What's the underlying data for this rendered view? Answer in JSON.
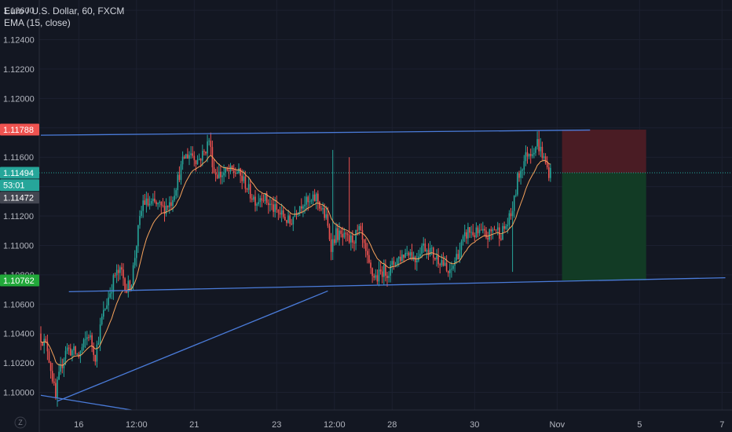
{
  "legend": {
    "symbol": "Euro / U.S. Dollar, 60, FXCM",
    "indicator": "EMA (15, close)"
  },
  "colors": {
    "background": "#131722",
    "up": "#26a69a",
    "down": "#ef5350",
    "ema": "#f7a35c",
    "trendline": "#4a7bd9",
    "stop_zone": "#4a1c24",
    "target_zone": "#123b25"
  },
  "chart_data": {
    "type": "candlestick",
    "title": "Euro / U.S. Dollar, 60, FXCM",
    "indicator": "EMA (15, close)",
    "ylim": [
      1.0988,
      1.1267
    ],
    "y_ticks": [
      "1.12600",
      "1.12400",
      "1.12200",
      "1.12000",
      "1.11800",
      "1.11600",
      "1.11400",
      "1.11200",
      "1.11000",
      "1.10800",
      "1.10600",
      "1.10400",
      "1.10200",
      "1.10000"
    ],
    "x_ticks": [
      {
        "label": "16",
        "bar": 23
      },
      {
        "label": "12:00",
        "bar": 58
      },
      {
        "label": "21",
        "bar": 93
      },
      {
        "label": "23",
        "bar": 143
      },
      {
        "label": "12:00",
        "bar": 178
      },
      {
        "label": "28",
        "bar": 213
      },
      {
        "label": "30",
        "bar": 263
      },
      {
        "label": "Nov",
        "bar": 313
      },
      {
        "label": "5",
        "bar": 363
      },
      {
        "label": "7",
        "bar": 413
      }
    ],
    "ohlc_path": [
      [
        0,
        1.104
      ],
      [
        5,
        1.103
      ],
      [
        8,
        1.101
      ],
      [
        10,
        1.0995
      ],
      [
        11,
        1.1005
      ],
      [
        16,
        1.103
      ],
      [
        20,
        1.1028
      ],
      [
        24,
        1.1025
      ],
      [
        30,
        1.104
      ],
      [
        34,
        1.1025
      ],
      [
        38,
        1.105
      ],
      [
        42,
        1.1065
      ],
      [
        46,
        1.108
      ],
      [
        50,
        1.1082
      ],
      [
        53,
        1.107
      ],
      [
        56,
        1.1076
      ],
      [
        60,
        1.111
      ],
      [
        63,
        1.113
      ],
      [
        66,
        1.1128
      ],
      [
        70,
        1.1128
      ],
      [
        75,
        1.1125
      ],
      [
        80,
        1.113
      ],
      [
        84,
        1.1145
      ],
      [
        88,
        1.116
      ],
      [
        92,
        1.1163
      ],
      [
        96,
        1.1158
      ],
      [
        100,
        1.1163
      ],
      [
        103,
        1.1172
      ],
      [
        106,
        1.115
      ],
      [
        110,
        1.1148
      ],
      [
        115,
        1.115
      ],
      [
        120,
        1.115
      ],
      [
        125,
        1.1142
      ],
      [
        128,
        1.1135
      ],
      [
        132,
        1.113
      ],
      [
        135,
        1.1135
      ],
      [
        138,
        1.113
      ],
      [
        142,
        1.1125
      ],
      [
        145,
        1.1122
      ],
      [
        148,
        1.112
      ],
      [
        152,
        1.1115
      ],
      [
        156,
        1.1125
      ],
      [
        160,
        1.113
      ],
      [
        164,
        1.1128
      ],
      [
        168,
        1.1133
      ],
      [
        171,
        1.1125
      ],
      [
        174,
        1.1118
      ],
      [
        177,
        1.11
      ],
      [
        180,
        1.1108
      ],
      [
        184,
        1.1105
      ],
      [
        188,
        1.1103
      ],
      [
        191,
        1.1105
      ],
      [
        194,
        1.111
      ],
      [
        197,
        1.1098
      ],
      [
        200,
        1.1085
      ],
      [
        202,
        1.108
      ],
      [
        205,
        1.1078
      ],
      [
        208,
        1.1083
      ],
      [
        212,
        1.1082
      ],
      [
        216,
        1.109
      ],
      [
        220,
        1.1093
      ],
      [
        224,
        1.1097
      ],
      [
        228,
        1.109
      ],
      [
        232,
        1.11
      ],
      [
        236,
        1.1098
      ],
      [
        240,
        1.1092
      ],
      [
        244,
        1.109
      ],
      [
        247,
        1.1082
      ],
      [
        249,
        1.108
      ],
      [
        252,
        1.109
      ],
      [
        256,
        1.11
      ],
      [
        260,
        1.111
      ],
      [
        264,
        1.1108
      ],
      [
        268,
        1.1108
      ],
      [
        272,
        1.1106
      ],
      [
        276,
        1.1112
      ],
      [
        280,
        1.1108
      ],
      [
        284,
        1.1115
      ],
      [
        286,
        1.112
      ],
      [
        288,
        1.113
      ],
      [
        290,
        1.1145
      ],
      [
        293,
        1.1155
      ],
      [
        296,
        1.1163
      ],
      [
        299,
        1.1165
      ],
      [
        302,
        1.117
      ],
      [
        305,
        1.1162
      ],
      [
        307,
        1.1155
      ],
      [
        309,
        1.115
      ]
    ],
    "spikes": [
      {
        "bar": 187,
        "high": 1.116,
        "low": 1.111
      },
      {
        "bar": 177,
        "high": 1.1165,
        "low": 1.11
      },
      {
        "bar": 286,
        "high": 1.113,
        "low": 1.1082
      }
    ],
    "price_tags": [
      {
        "label": "1.11788",
        "price": 1.11788,
        "color": "#ef5350"
      },
      {
        "label": "1.11494",
        "price": 1.11494,
        "color": "#26a69a"
      },
      {
        "label": "53:01",
        "price": 1.1141,
        "color": "#26a69a"
      },
      {
        "label": "1.11472",
        "price": 1.11325,
        "color": "#434651"
      },
      {
        "label": "1.10762",
        "price": 1.10762,
        "color": "#22a83a"
      }
    ],
    "trend_lines": [
      {
        "name": "upper-channel",
        "from": [
          0,
          1.1175
        ],
        "to": [
          333,
          1.11785
        ]
      },
      {
        "name": "lower-channel",
        "from": [
          17,
          1.10685
        ],
        "to": [
          415,
          1.1078
        ]
      },
      {
        "name": "rising-trendline",
        "from": [
          10,
          1.0994
        ],
        "to": [
          174,
          1.1069
        ]
      },
      {
        "name": "falling-trendline",
        "from": [
          0,
          1.0998
        ],
        "to": [
          55,
          1.0988
        ]
      }
    ],
    "current_price_line": 1.11494,
    "position": {
      "entry": 1.11494,
      "stop": 1.11788,
      "target": 1.10762,
      "from_bar": 316,
      "to_bar": 367
    },
    "x_axis_logo": "Z"
  }
}
